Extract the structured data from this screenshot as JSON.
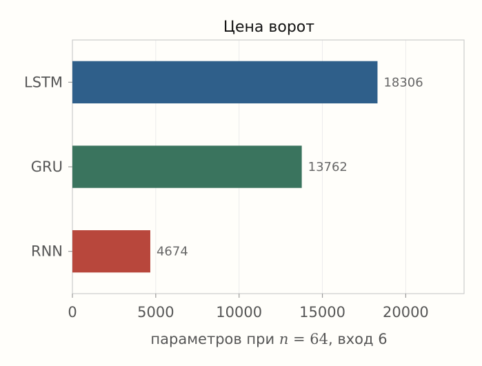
{
  "chart_data": {
    "type": "bar",
    "orientation": "horizontal",
    "title": "Цена ворот",
    "categories": [
      "LSTM",
      "GRU",
      "RNN"
    ],
    "values": [
      18306,
      13762,
      4674
    ],
    "data_labels": [
      "18306",
      "13762",
      "4674"
    ],
    "colors": [
      "#2f5f8a",
      "#3a745e",
      "#b8473c"
    ],
    "xlabel": {
      "prefix": "параметров при ",
      "math_var": "n",
      "math_eq": " = ",
      "math_val": "64",
      "suffix": ", вход 6"
    },
    "ylabel": "",
    "xlim": [
      0,
      23500
    ],
    "x_ticks": [
      0,
      5000,
      10000,
      15000,
      20000
    ],
    "x_tick_labels": [
      "0",
      "5000",
      "10000",
      "15000",
      "20000"
    ],
    "grid": "vertical",
    "legend": "none"
  }
}
